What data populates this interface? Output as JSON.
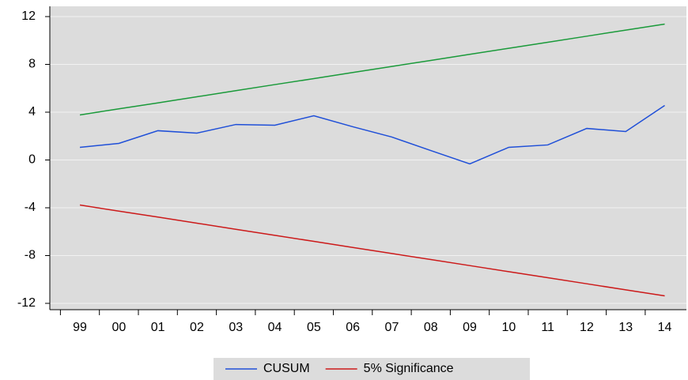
{
  "chart_data": {
    "type": "line",
    "categories": [
      "99",
      "00",
      "01",
      "02",
      "03",
      "04",
      "05",
      "06",
      "07",
      "08",
      "09",
      "10",
      "11",
      "12",
      "13",
      "14"
    ],
    "series": [
      {
        "name": "CUSUM",
        "color": "#1f4fd8",
        "values": [
          1.06,
          1.39,
          2.45,
          2.25,
          2.97,
          2.91,
          3.7,
          2.78,
          1.92,
          0.79,
          -0.33,
          1.06,
          1.26,
          2.64,
          2.38,
          4.56
        ]
      },
      {
        "color": "#1a9a3a",
        "values": [
          3.77,
          4.28,
          4.78,
          5.29,
          5.8,
          6.31,
          6.81,
          7.32,
          7.83,
          8.33,
          8.84,
          9.35,
          9.85,
          10.36,
          10.87,
          11.37
        ]
      },
      {
        "name": "5% Significance",
        "color": "#cc1a1a",
        "values": [
          -3.77,
          -4.28,
          -4.78,
          -5.29,
          -5.8,
          -6.31,
          -6.81,
          -7.32,
          -7.83,
          -8.33,
          -8.84,
          -9.35,
          -9.85,
          -10.36,
          -10.87,
          -11.37
        ]
      }
    ],
    "ylim": [
      -12.53,
      12.86
    ],
    "yticks": [
      -12,
      -8,
      -4,
      0,
      4,
      8,
      12
    ],
    "grid": true
  }
}
